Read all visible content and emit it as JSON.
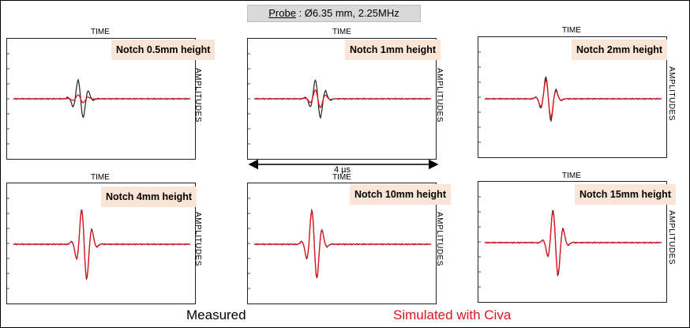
{
  "probe": {
    "label": "Probe",
    "value": ": Ø6.35 mm, 2.25MHz"
  },
  "axis": {
    "time_label": "TIME",
    "amplitude_label": "AMPLITUDES",
    "scale_label": "4 µs"
  },
  "legend": {
    "measured": "Measured",
    "simulated": "Simulated with Civa"
  },
  "colors": {
    "measured": "#222222",
    "simulated": "#e0141e",
    "notch_bg": "#fbe5d6"
  },
  "chart_data": [
    {
      "type": "line",
      "title": "Notch 0.5mm height",
      "xlabel": "TIME",
      "ylabel": "AMPLITUDES",
      "ylim": [
        -1,
        1
      ],
      "series": [
        {
          "name": "Measured",
          "amplitude": 0.42,
          "center": 0.38
        },
        {
          "name": "Simulated with Civa",
          "amplitude": 0.09,
          "center": 0.38
        }
      ]
    },
    {
      "type": "line",
      "title": "Notch 1mm height",
      "xlabel": "TIME",
      "ylabel": "AMPLITUDES",
      "ylim": [
        -1,
        1
      ],
      "series": [
        {
          "name": "Measured",
          "amplitude": 0.42,
          "center": 0.36
        },
        {
          "name": "Simulated with Civa",
          "amplitude": 0.2,
          "center": 0.36
        }
      ]
    },
    {
      "type": "line",
      "title": "Notch 2mm height",
      "xlabel": "TIME",
      "ylabel": "AMPLITUDES",
      "ylim": [
        -1,
        1
      ],
      "series": [
        {
          "name": "Measured",
          "amplitude": 0.49,
          "center": 0.36
        },
        {
          "name": "Simulated with Civa",
          "amplitude": 0.42,
          "center": 0.36
        }
      ]
    },
    {
      "type": "line",
      "title": "Notch 4mm height",
      "xlabel": "TIME",
      "ylabel": "AMPLITUDES",
      "ylim": [
        -1,
        1
      ],
      "series": [
        {
          "name": "Measured",
          "amplitude": 0.79,
          "center": 0.4
        },
        {
          "name": "Simulated with Civa",
          "amplitude": 0.77,
          "center": 0.4
        }
      ]
    },
    {
      "type": "line",
      "title": "Notch 10mm height",
      "xlabel": "TIME",
      "ylabel": "AMPLITUDES",
      "ylim": [
        -1,
        1
      ],
      "series": [
        {
          "name": "Measured",
          "amplitude": 0.77,
          "center": 0.34
        },
        {
          "name": "Simulated with Civa",
          "amplitude": 0.75,
          "center": 0.34
        }
      ]
    },
    {
      "type": "line",
      "title": "Notch 15mm height",
      "xlabel": "TIME",
      "ylabel": "AMPLITUDES",
      "ylim": [
        -1,
        1
      ],
      "series": [
        {
          "name": "Measured",
          "amplitude": 0.74,
          "center": 0.4
        },
        {
          "name": "Simulated with Civa",
          "amplitude": 0.71,
          "center": 0.4
        }
      ]
    }
  ]
}
